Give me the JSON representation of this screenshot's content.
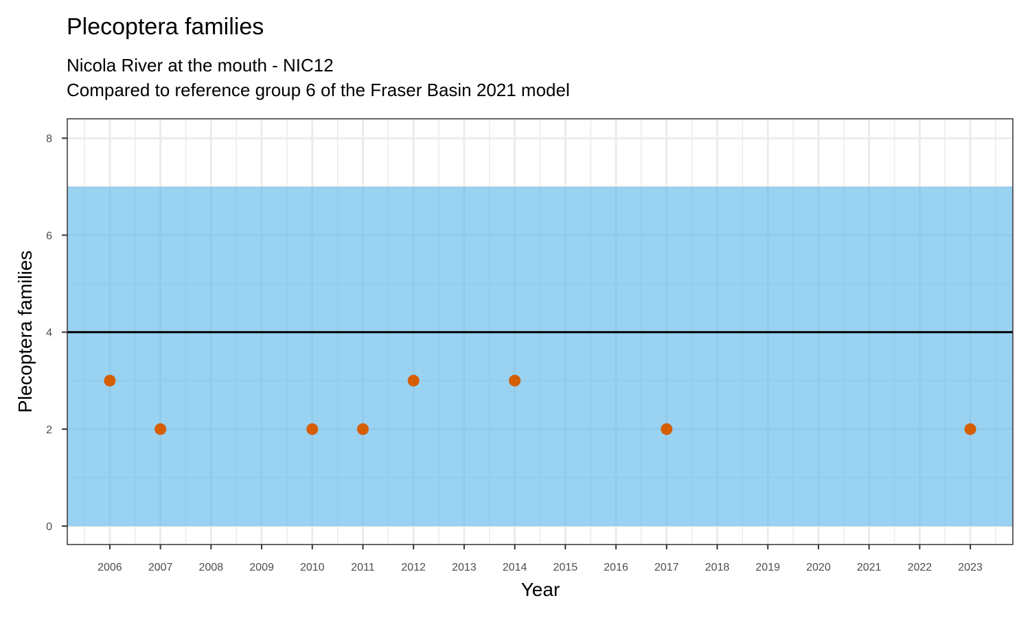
{
  "chart_data": {
    "type": "scatter",
    "title": "Plecoptera families",
    "subtitle_lines": [
      "Nicola River at the mouth - NIC12",
      "Compared to reference group 6 of the Fraser Basin 2021 model"
    ],
    "xlabel": "Year",
    "ylabel": "Plecoptera families",
    "xlim": [
      2005.16,
      2023.84
    ],
    "ylim": [
      -0.38,
      8.4
    ],
    "x_ticks": [
      2006,
      2007,
      2008,
      2009,
      2010,
      2011,
      2012,
      2013,
      2014,
      2015,
      2016,
      2017,
      2018,
      2019,
      2020,
      2021,
      2022,
      2023
    ],
    "y_ticks": [
      0,
      2,
      4,
      6,
      8
    ],
    "grid": true,
    "reference_band": {
      "ymin": 0,
      "ymax": 7,
      "color": "#56B4E9"
    },
    "reference_line": {
      "y": 4,
      "color": "#000000"
    },
    "points": {
      "color": "#D55E00",
      "x": [
        2006,
        2007,
        2010,
        2011,
        2012,
        2014,
        2017,
        2023
      ],
      "y": [
        3,
        2,
        2,
        2,
        3,
        3,
        2,
        2
      ]
    }
  }
}
